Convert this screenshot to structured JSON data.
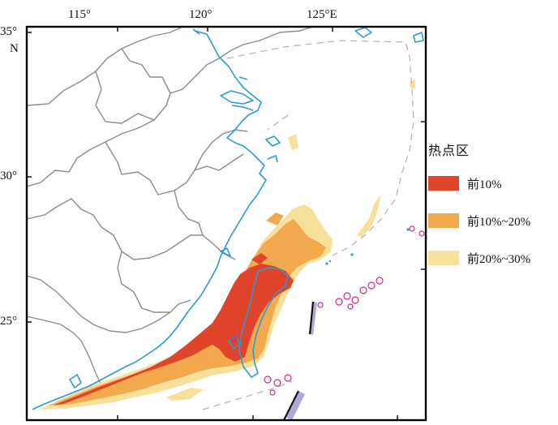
{
  "map": {
    "ticks": {
      "lon_top": [
        "115°",
        "120°",
        "125°E"
      ],
      "lat_left": [
        "35°",
        "N",
        "30°",
        "25°"
      ]
    },
    "legend": {
      "title": "热点区",
      "items": [
        {
          "label": "前10%",
          "color": "#e0442a"
        },
        {
          "label": "前10%~20%",
          "color": "#f3a94e"
        },
        {
          "label": "前20%~30%",
          "color": "#f7e19a"
        }
      ]
    },
    "colors": {
      "coastline": "#2b9bd1",
      "province_borders": "#8c8c8c",
      "frame": "#000000",
      "island_markers": "#d6238a"
    }
  }
}
